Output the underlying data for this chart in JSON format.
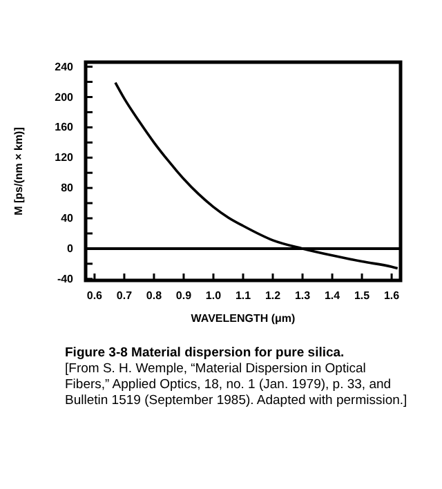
{
  "chart_data": {
    "type": "line",
    "title": "Figure 3-8    Material dispersion for pure silica.",
    "xlabel": "WAVELENGTH (μm)",
    "ylabel": "M [ps/(nm × km)]",
    "annotations": [
      "[From S. H. Wemple, “Material Dispersion in Optical Fibers,” Applied Optics, 18, no. 1 (Jan. 1979), p. 33, and Bulletin 1519 (September 1985). Adapted with permission.]"
    ],
    "xlim": [
      0.57,
      1.63
    ],
    "xticks": [
      0.6,
      0.7,
      0.8,
      0.9,
      {
        "value": 1,
        "label": "1.0"
      },
      1.1,
      1.2,
      1.3,
      1.4,
      1.5,
      1.6
    ],
    "ylim": [
      -42,
      246
    ],
    "yticks": [
      -40,
      {
        "value": -20,
        "label": null
      },
      0,
      {
        "value": 20,
        "label": null
      },
      40,
      {
        "value": 60,
        "label": null
      },
      80,
      {
        "value": 100,
        "label": null
      },
      120,
      {
        "value": 140,
        "label": null
      },
      160,
      {
        "value": 180,
        "label": null
      },
      200,
      {
        "value": 220,
        "label": null
      },
      240
    ],
    "grid": false,
    "marker": "none",
    "line_style": "solid",
    "ref_lines": [
      {
        "axis": "y",
        "value": 0,
        "color": "#000000"
      }
    ],
    "series": [
      {
        "color": "#000000",
        "x": [
          0.67,
          0.7,
          0.75,
          0.8,
          0.85,
          0.9,
          0.95,
          1.0,
          1.05,
          1.1,
          1.2,
          1.3,
          1.4,
          1.5,
          1.6,
          1.62
        ],
        "values": [
          219,
          198,
          168,
          140,
          115,
          92,
          72,
          55,
          41,
          30,
          11,
          0,
          -9,
          -17,
          -24,
          -26
        ]
      }
    ]
  }
}
